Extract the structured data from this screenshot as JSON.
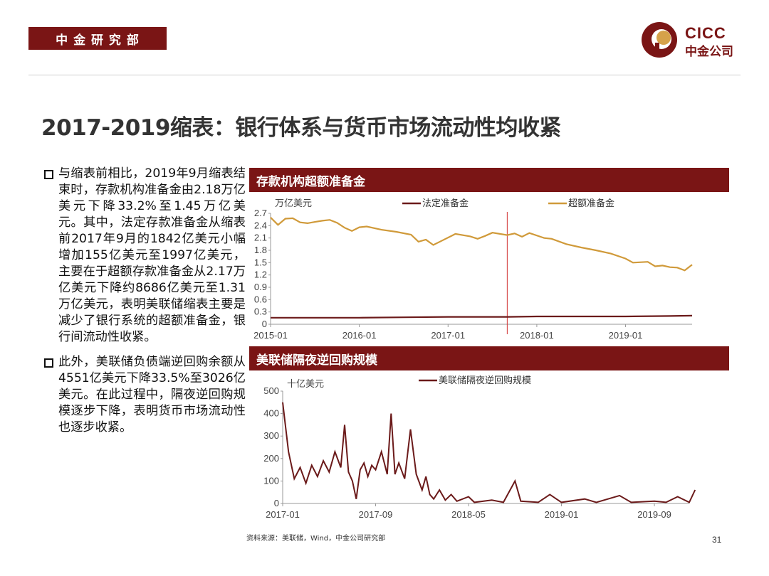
{
  "header": {
    "dept_label": "中 金 研 究 部",
    "logo_line1": "CICC",
    "logo_line2": "中金公司",
    "brand_color": "#7a1515"
  },
  "title": "2017-2019缩表：银行体系与货币市场流动性均收紧",
  "bullets": [
    "与缩表前相比，2019年9月缩表结束时，存款机构准备金由2.18万亿美元下降33.2%至1.45万亿美元。其中，法定存款准备金从缩表前2017年9月的1842亿美元小幅增加155亿美元至1997亿美元，主要在于超额存款准备金从2.17万亿美元下降约8686亿美元至1.31万亿美元，表明美联储缩表主要是减少了银行系统的超额准备金，银行间流动性收紧。",
    "此外，美联储负债端逆回购余额从4551亿美元下降33.5%至3026亿美元。在此过程中，隔夜逆回购规模逐步下降，表明货币市场流动性也逐步收紧。"
  ],
  "footer": {
    "source": "资料来源：美联储，Wind，中金公司研究部",
    "page_number": "31"
  },
  "chart_data": [
    {
      "type": "line",
      "title": "存款机构超额准备金",
      "ylabel": "万亿美元",
      "ylim": [
        0,
        2.7
      ],
      "yticks": [
        "2.7",
        "2.4",
        "2.1",
        "1.8",
        "1.5",
        "1.2",
        "0.9",
        "0.6",
        "0.3",
        "0"
      ],
      "x_ticks": [
        "2015-01",
        "2016-01",
        "2017-01",
        "2018-01",
        "2019-01"
      ],
      "x_range": [
        "2015-01",
        "2019-10"
      ],
      "vertical_marker": "2017-09",
      "legend_position": "top",
      "series": [
        {
          "name": "法定准备金",
          "color": "#6b1a1a",
          "points": [
            [
              "2015-01",
              0.16
            ],
            [
              "2015-07",
              0.16
            ],
            [
              "2016-01",
              0.16
            ],
            [
              "2016-07",
              0.17
            ],
            [
              "2017-01",
              0.18
            ],
            [
              "2017-07",
              0.18
            ],
            [
              "2017-09",
              0.18
            ],
            [
              "2018-01",
              0.19
            ],
            [
              "2018-07",
              0.19
            ],
            [
              "2019-01",
              0.19
            ],
            [
              "2019-07",
              0.2
            ],
            [
              "2019-10",
              0.21
            ]
          ]
        },
        {
          "name": "超额准备金",
          "color": "#d09a3a",
          "points": [
            [
              "2015-01",
              2.6
            ],
            [
              "2015-02",
              2.42
            ],
            [
              "2015-03",
              2.57
            ],
            [
              "2015-04",
              2.58
            ],
            [
              "2015-05",
              2.48
            ],
            [
              "2015-06",
              2.46
            ],
            [
              "2015-07",
              2.49
            ],
            [
              "2015-08",
              2.52
            ],
            [
              "2015-09",
              2.54
            ],
            [
              "2015-10",
              2.47
            ],
            [
              "2015-11",
              2.35
            ],
            [
              "2015-12",
              2.27
            ],
            [
              "2016-01",
              2.36
            ],
            [
              "2016-02",
              2.38
            ],
            [
              "2016-04",
              2.3
            ],
            [
              "2016-06",
              2.25
            ],
            [
              "2016-08",
              2.18
            ],
            [
              "2016-09",
              2.01
            ],
            [
              "2016-10",
              2.06
            ],
            [
              "2016-11",
              1.93
            ],
            [
              "2016-12",
              2.02
            ],
            [
              "2017-02",
              2.2
            ],
            [
              "2017-04",
              2.14
            ],
            [
              "2017-05",
              2.08
            ],
            [
              "2017-06",
              2.15
            ],
            [
              "2017-07",
              2.23
            ],
            [
              "2017-09",
              2.17
            ],
            [
              "2017-10",
              2.21
            ],
            [
              "2017-11",
              2.13
            ],
            [
              "2017-12",
              2.22
            ],
            [
              "2018-02",
              2.1
            ],
            [
              "2018-03",
              2.08
            ],
            [
              "2018-05",
              1.95
            ],
            [
              "2018-07",
              1.87
            ],
            [
              "2018-09",
              1.8
            ],
            [
              "2018-11",
              1.72
            ],
            [
              "2019-01",
              1.6
            ],
            [
              "2019-02",
              1.5
            ],
            [
              "2019-04",
              1.52
            ],
            [
              "2019-05",
              1.41
            ],
            [
              "2019-06",
              1.43
            ],
            [
              "2019-07",
              1.39
            ],
            [
              "2019-08",
              1.38
            ],
            [
              "2019-09",
              1.31
            ],
            [
              "2019-10",
              1.45
            ]
          ]
        }
      ]
    },
    {
      "type": "line",
      "title": "美联储隔夜逆回购规模",
      "ylabel": "十亿美元",
      "ylim": [
        0,
        500
      ],
      "yticks": [
        "500",
        "400",
        "300",
        "200",
        "100",
        "0"
      ],
      "x_ticks": [
        "2017-01",
        "2017-09",
        "2018-05",
        "2019-01",
        "2019-09"
      ],
      "x_range": [
        "2017-01",
        "2019-12"
      ],
      "legend_position": "top",
      "series": [
        {
          "name": "美联储隔夜逆回购规模",
          "color": "#6b1a1a",
          "points": [
            [
              "2017-01",
              450
            ],
            [
              "2017-01",
              230
            ],
            [
              "2017-02",
              110
            ],
            [
              "2017-02",
              160
            ],
            [
              "2017-03",
              90
            ],
            [
              "2017-03",
              170
            ],
            [
              "2017-04",
              120
            ],
            [
              "2017-04",
              190
            ],
            [
              "2017-05",
              140
            ],
            [
              "2017-05",
              230
            ],
            [
              "2017-06",
              160
            ],
            [
              "2017-06",
              350
            ],
            [
              "2017-06",
              140
            ],
            [
              "2017-07",
              100
            ],
            [
              "2017-07",
              20
            ],
            [
              "2017-07",
              150
            ],
            [
              "2017-08",
              180
            ],
            [
              "2017-08",
              120
            ],
            [
              "2017-08",
              170
            ],
            [
              "2017-09",
              150
            ],
            [
              "2017-09",
              230
            ],
            [
              "2017-10",
              130
            ],
            [
              "2017-10",
              400
            ],
            [
              "2017-10",
              130
            ],
            [
              "2017-11",
              180
            ],
            [
              "2017-11",
              110
            ],
            [
              "2017-12",
              330
            ],
            [
              "2017-12",
              130
            ],
            [
              "2018-01",
              60
            ],
            [
              "2018-01",
              120
            ],
            [
              "2018-01",
              40
            ],
            [
              "2018-02",
              20
            ],
            [
              "2018-02",
              60
            ],
            [
              "2018-03",
              15
            ],
            [
              "2018-03",
              40
            ],
            [
              "2018-04",
              10
            ],
            [
              "2018-05",
              30
            ],
            [
              "2018-05",
              5
            ],
            [
              "2018-07",
              15
            ],
            [
              "2018-08",
              5
            ],
            [
              "2018-09",
              100
            ],
            [
              "2018-09",
              10
            ],
            [
              "2018-11",
              5
            ],
            [
              "2018-12",
              40
            ],
            [
              "2019-01",
              5
            ],
            [
              "2019-03",
              20
            ],
            [
              "2019-04",
              5
            ],
            [
              "2019-06",
              35
            ],
            [
              "2019-07",
              5
            ],
            [
              "2019-09",
              10
            ],
            [
              "2019-10",
              5
            ],
            [
              "2019-11",
              30
            ],
            [
              "2019-12",
              5
            ],
            [
              "2019-12",
              60
            ]
          ]
        }
      ]
    }
  ]
}
